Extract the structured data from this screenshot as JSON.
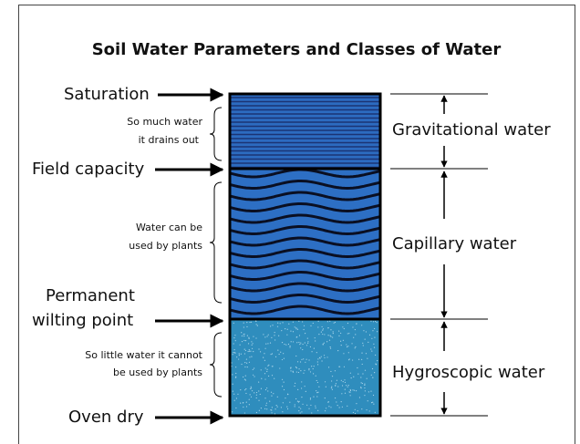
{
  "title": "Soil Water Parameters and Classes of Water",
  "levels": [
    {
      "lines": [
        "Saturation"
      ]
    },
    {
      "lines": [
        "Field capacity"
      ]
    },
    {
      "lines": [
        "Permanent",
        "wilting point"
      ]
    },
    {
      "lines": [
        "Oven dry"
      ]
    }
  ],
  "notes": [
    {
      "lines": [
        "So much water",
        "it drains out"
      ]
    },
    {
      "lines": [
        "Water can be",
        "used by plants"
      ]
    },
    {
      "lines": [
        "So little water it cannot",
        "be used by plants"
      ]
    }
  ],
  "classes": [
    "Gravitational water",
    "Capillary water",
    "Hygroscopic water"
  ]
}
